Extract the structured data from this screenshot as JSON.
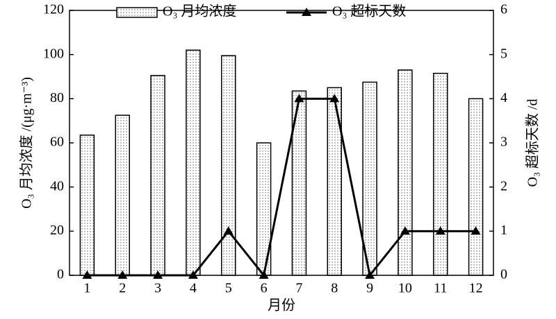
{
  "chart_data": {
    "type": "combo",
    "x_label": "月份",
    "y_label": "O₃ 月均浓度 /(μg·m⁻³)",
    "y2_label": "O₃ 超标天数 /d",
    "categories": [
      "1",
      "2",
      "3",
      "4",
      "5",
      "6",
      "7",
      "8",
      "9",
      "10",
      "11",
      "12"
    ],
    "series": [
      {
        "name": "O₃ 月均浓度",
        "type": "bar",
        "color": "#000000",
        "values": [
          63.5,
          72.5,
          90.5,
          102,
          99.5,
          60,
          83.5,
          85,
          87.5,
          93,
          91.5,
          80
        ]
      },
      {
        "name": "O₃ 超标天数",
        "type": "line",
        "axis": "y2",
        "color": "#000000",
        "values": [
          0,
          0,
          0,
          0,
          1,
          0,
          4,
          4,
          0,
          1,
          1,
          1
        ]
      }
    ],
    "ylim": [
      0,
      120
    ],
    "yticks": [
      0,
      20,
      40,
      60,
      80,
      100,
      120
    ],
    "y2lim": [
      0,
      6
    ],
    "y2ticks": [
      0,
      1,
      2,
      3,
      4,
      5,
      6
    ],
    "legend": "top"
  }
}
